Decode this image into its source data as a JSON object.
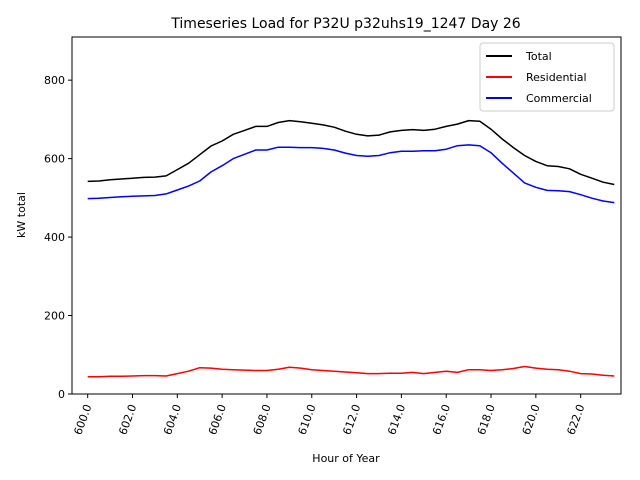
{
  "chart_data": {
    "type": "line",
    "title": "Timeseries Load for P32U p32uhs19_1247  Day 26",
    "xlabel": "Hour of Year",
    "ylabel": "kW total",
    "xlim": [
      599.3,
      623.8
    ],
    "ylim": [
      0,
      910
    ],
    "xticks": [
      600,
      602,
      604,
      606,
      608,
      610,
      612,
      614,
      616,
      618,
      620,
      622
    ],
    "xtick_labels": [
      "600.0",
      "602.0",
      "604.0",
      "606.0",
      "608.0",
      "610.0",
      "612.0",
      "614.0",
      "616.0",
      "618.0",
      "620.0",
      "622.0"
    ],
    "yticks": [
      0,
      200,
      400,
      600,
      800
    ],
    "ytick_labels": [
      "0",
      "200",
      "400",
      "600",
      "800"
    ],
    "grid": false,
    "legend_position": "top-right",
    "x": [
      600.0,
      600.5,
      601.0,
      601.5,
      602.0,
      602.5,
      603.0,
      603.5,
      604.0,
      604.5,
      605.0,
      605.5,
      606.0,
      606.5,
      607.0,
      607.5,
      608.0,
      608.5,
      609.0,
      609.5,
      610.0,
      610.5,
      611.0,
      611.5,
      612.0,
      612.5,
      613.0,
      613.5,
      614.0,
      614.5,
      615.0,
      615.5,
      616.0,
      616.5,
      617.0,
      617.5,
      618.0,
      618.5,
      619.0,
      619.5,
      620.0,
      620.5,
      621.0,
      621.5,
      622.0,
      622.5,
      623.0,
      623.5
    ],
    "series": [
      {
        "name": "Total",
        "color": "#000000",
        "values": [
          542,
          543,
          546,
          548,
          550,
          552,
          553,
          556,
          572,
          588,
          610,
          632,
          645,
          662,
          672,
          682,
          682,
          692,
          697,
          694,
          690,
          686,
          680,
          670,
          662,
          658,
          660,
          668,
          672,
          674,
          672,
          675,
          682,
          688,
          697,
          695,
          675,
          650,
          628,
          608,
          593,
          582,
          580,
          574,
          560,
          550,
          540,
          534
        ]
      },
      {
        "name": "Residential",
        "color": "#ff0000",
        "values": [
          44,
          44,
          45,
          45,
          46,
          47,
          47,
          46,
          52,
          58,
          67,
          66,
          63,
          62,
          61,
          60,
          60,
          63,
          68,
          66,
          62,
          60,
          58,
          56,
          54,
          52,
          52,
          53,
          53,
          55,
          52,
          55,
          58,
          55,
          62,
          62,
          60,
          62,
          65,
          70,
          66,
          63,
          62,
          58,
          52,
          51,
          48,
          46
        ]
      },
      {
        "name": "Commercial",
        "color": "#0000ff",
        "values": [
          498,
          499,
          501,
          503,
          504,
          505,
          506,
          510,
          520,
          530,
          543,
          566,
          582,
          600,
          611,
          622,
          622,
          629,
          629,
          628,
          628,
          626,
          622,
          614,
          608,
          606,
          608,
          615,
          619,
          619,
          620,
          620,
          624,
          633,
          635,
          633,
          615,
          588,
          563,
          538,
          527,
          519,
          518,
          516,
          508,
          499,
          492,
          488
        ]
      }
    ]
  }
}
